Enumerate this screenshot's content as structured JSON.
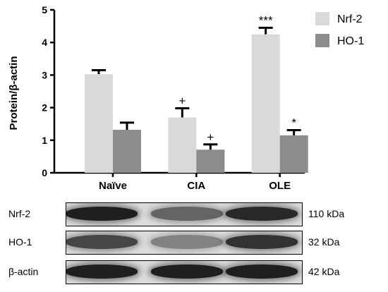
{
  "chart_data": {
    "type": "bar",
    "ylabel": "Protein/β-actin",
    "ylim": [
      0,
      5
    ],
    "yticks": [
      0,
      1,
      2,
      3,
      4,
      5
    ],
    "categories": [
      "Naïve",
      "CIA",
      "OLE"
    ],
    "series": [
      {
        "name": "Nrf-2",
        "color": "#d9d9d9",
        "values": [
          3.03,
          1.7,
          4.25
        ],
        "errors": [
          0.12,
          0.28,
          0.2
        ]
      },
      {
        "name": "HO-1",
        "color": "#8c8c8c",
        "values": [
          1.32,
          0.71,
          1.15
        ],
        "errors": [
          0.22,
          0.16,
          0.16
        ]
      }
    ],
    "annotations": [
      {
        "series": "Nrf-2",
        "category": "CIA",
        "text": "+"
      },
      {
        "series": "HO-1",
        "category": "CIA",
        "text": "+"
      },
      {
        "series": "Nrf-2",
        "category": "OLE",
        "text": "***"
      },
      {
        "series": "HO-1",
        "category": "OLE",
        "text": "*"
      }
    ],
    "legend_position": "top-right"
  },
  "blot": {
    "rows": [
      {
        "label": "Nrf-2",
        "size": "110 kDa",
        "intensities": [
          0.95,
          0.6,
          0.9
        ]
      },
      {
        "label": "HO-1",
        "size": "32 kDa",
        "intensities": [
          0.75,
          0.45,
          0.85
        ]
      },
      {
        "label": "β-actin",
        "size": "42 kDa",
        "intensities": [
          0.95,
          0.95,
          0.95
        ]
      }
    ]
  }
}
